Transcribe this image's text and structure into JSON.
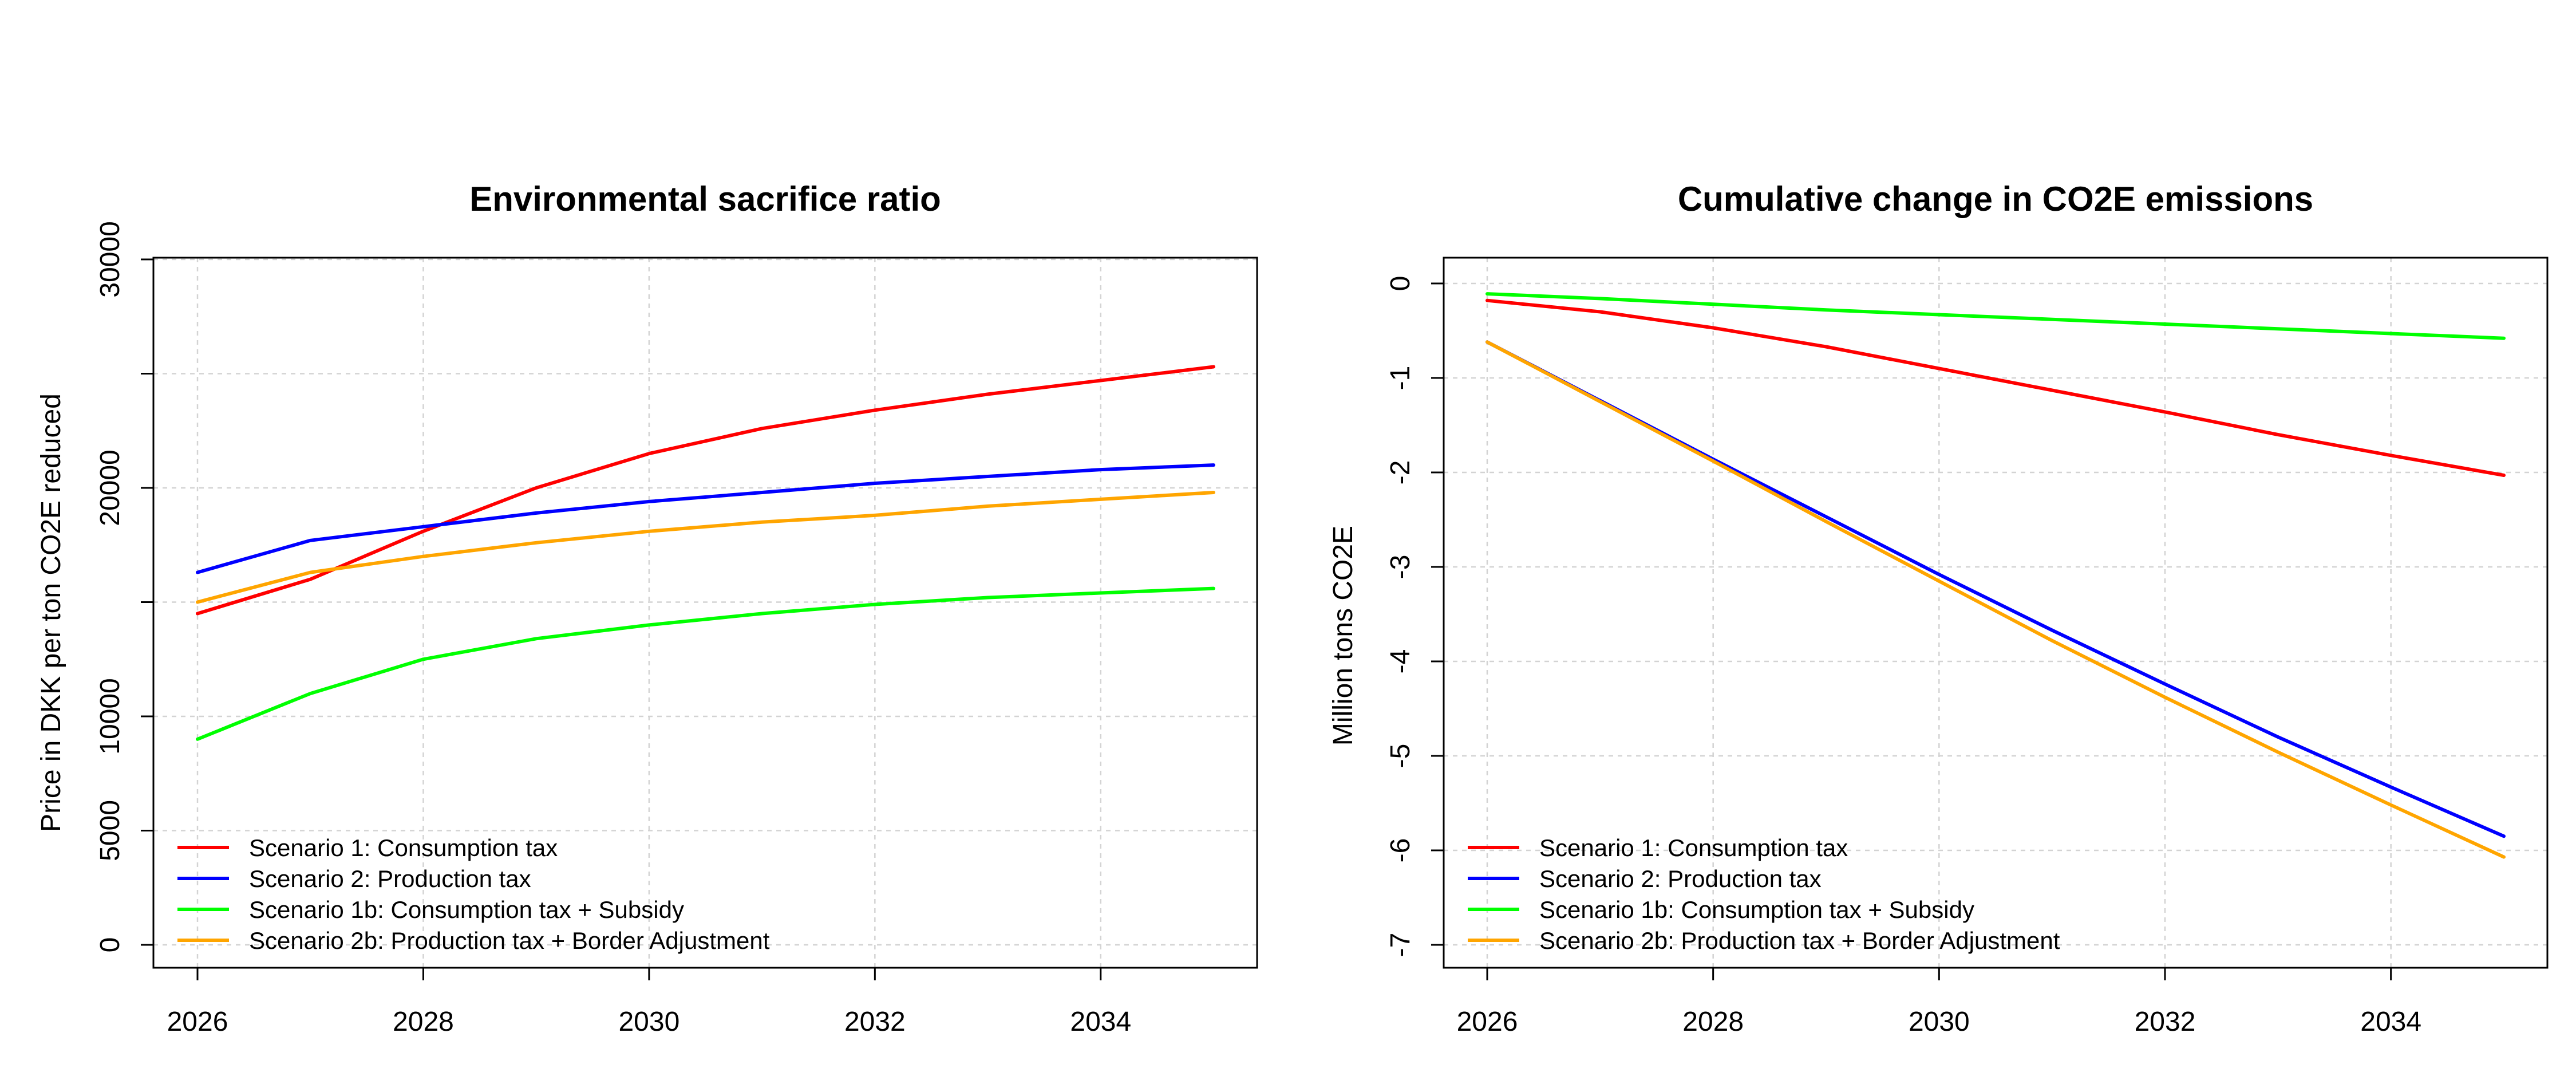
{
  "chart_data": [
    {
      "type": "line",
      "title": "Environmental sacrifice ratio",
      "xlabel": "",
      "ylabel": "Price in DKK per ton CO2E reduced",
      "x": [
        2026,
        2027,
        2028,
        2029,
        2030,
        2031,
        2032,
        2033,
        2034,
        2035
      ],
      "xlim": [
        2026,
        2035
      ],
      "ylim": [
        0,
        30000
      ],
      "xticks": [
        2026,
        2028,
        2030,
        2032,
        2034
      ],
      "xtick_labels": [
        "2026",
        "2028",
        "2030",
        "2032",
        "2034"
      ],
      "yticks": [
        0,
        5000,
        10000,
        15000,
        20000,
        25000,
        30000
      ],
      "ytick_labels": [
        "0",
        "5000",
        "10000",
        "",
        "20000",
        "",
        "30000"
      ],
      "grid": true,
      "legend_position": "bottom-left",
      "series": [
        {
          "name": "Scenario 1: Consumption tax",
          "color": "#ff0000",
          "values": [
            14500,
            16000,
            18100,
            20000,
            21500,
            22600,
            23400,
            24100,
            24700,
            25300
          ]
        },
        {
          "name": "Scenario 2: Production tax",
          "color": "#0000ff",
          "values": [
            16300,
            17700,
            18300,
            18900,
            19400,
            19800,
            20200,
            20500,
            20800,
            21000
          ]
        },
        {
          "name": "Scenario 1b: Consumption tax + Subsidy",
          "color": "#00ff00",
          "values": [
            9000,
            11000,
            12500,
            13400,
            14000,
            14500,
            14900,
            15200,
            15400,
            15600
          ]
        },
        {
          "name": "Scenario 2b: Production tax + Border Adjustment",
          "color": "#ffa500",
          "values": [
            15000,
            16300,
            17000,
            17600,
            18100,
            18500,
            18800,
            19200,
            19500,
            19800
          ]
        }
      ]
    },
    {
      "type": "line",
      "title": "Cumulative change in CO2E emissions",
      "xlabel": "",
      "ylabel": "Million tons CO2E",
      "x": [
        2026,
        2027,
        2028,
        2029,
        2030,
        2031,
        2032,
        2033,
        2034,
        2035
      ],
      "xlim": [
        2026,
        2035
      ],
      "ylim": [
        -7,
        0
      ],
      "xticks": [
        2026,
        2028,
        2030,
        2032,
        2034
      ],
      "xtick_labels": [
        "2026",
        "2028",
        "2030",
        "2032",
        "2034"
      ],
      "yticks": [
        0,
        -1,
        -2,
        -3,
        -4,
        -5,
        -6,
        -7
      ],
      "ytick_labels": [
        "0",
        "-1",
        "-2",
        "-3",
        "-4",
        "-5",
        "-6",
        "-7"
      ],
      "grid": true,
      "legend_position": "bottom-left",
      "series": [
        {
          "name": "Scenario 1: Consumption tax",
          "color": "#ff0000",
          "values": [
            -0.18,
            -0.3,
            -0.47,
            -0.67,
            -0.9,
            -1.13,
            -1.36,
            -1.6,
            -1.82,
            -2.03
          ]
        },
        {
          "name": "Scenario 2: Production tax",
          "color": "#0000ff",
          "values": [
            -0.62,
            -1.24,
            -1.86,
            -2.47,
            -3.08,
            -3.67,
            -4.24,
            -4.8,
            -5.33,
            -5.85
          ]
        },
        {
          "name": "Scenario 1b: Consumption tax + Subsidy",
          "color": "#00ff00",
          "values": [
            -0.11,
            -0.16,
            -0.22,
            -0.28,
            -0.33,
            -0.38,
            -0.43,
            -0.48,
            -0.53,
            -0.58
          ]
        },
        {
          "name": "Scenario 2b: Production tax + Border Adjustment",
          "color": "#ffa500",
          "values": [
            -0.62,
            -1.25,
            -1.88,
            -2.52,
            -3.15,
            -3.78,
            -4.38,
            -4.96,
            -5.52,
            -6.07
          ]
        }
      ]
    }
  ]
}
